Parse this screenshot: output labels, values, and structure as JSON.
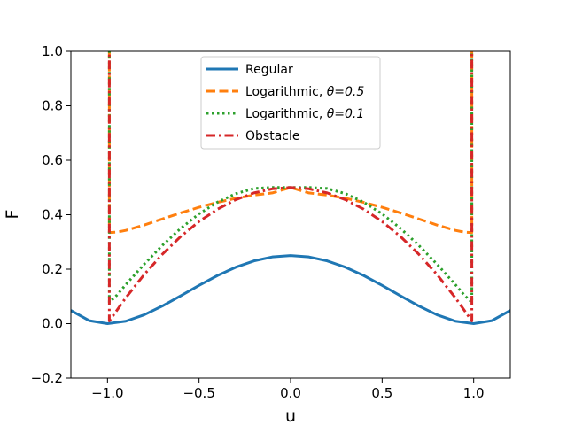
{
  "chart_data": {
    "type": "line",
    "title": "",
    "xlabel": "u",
    "ylabel": "F",
    "xlim": [
      -1.2,
      1.2
    ],
    "ylim": [
      -0.2,
      1.0
    ],
    "grid": false,
    "legend_position": "top-center",
    "x_ticks": [
      {
        "value": -1.0,
        "label": "−1.0"
      },
      {
        "value": -0.5,
        "label": "−0.5"
      },
      {
        "value": 0.0,
        "label": "0.0"
      },
      {
        "value": 0.5,
        "label": "0.5"
      },
      {
        "value": 1.0,
        "label": "1.0"
      }
    ],
    "y_ticks": [
      {
        "value": -0.2,
        "label": "−0.2"
      },
      {
        "value": 0.0,
        "label": "0.0"
      },
      {
        "value": 0.2,
        "label": "0.2"
      },
      {
        "value": 0.4,
        "label": "0.4"
      },
      {
        "value": 0.6,
        "label": "0.6"
      },
      {
        "value": 0.8,
        "label": "0.8"
      },
      {
        "value": 1.0,
        "label": "1.0"
      }
    ],
    "series": [
      {
        "name": "Regular",
        "label_prefix": "Regular",
        "label_theta": "",
        "color": "#1f77b4",
        "style": "solid",
        "x": [
          -1.2,
          -1.1,
          -1.0,
          -0.9,
          -0.8,
          -0.7,
          -0.6,
          -0.5,
          -0.4,
          -0.3,
          -0.2,
          -0.1,
          0.0,
          0.1,
          0.2,
          0.3,
          0.4,
          0.5,
          0.6,
          0.7,
          0.8,
          0.9,
          1.0,
          1.1,
          1.2
        ],
        "y": [
          0.0484,
          0.011,
          0.0,
          0.009,
          0.0324,
          0.065,
          0.1024,
          0.1406,
          0.1764,
          0.207,
          0.2304,
          0.245,
          0.25,
          0.245,
          0.2304,
          0.207,
          0.1764,
          0.1406,
          0.1024,
          0.065,
          0.0324,
          0.009,
          0.0,
          0.011,
          0.0484
        ]
      },
      {
        "name": "Logarithmic, θ=0.5",
        "label_prefix": "Logarithmic, ",
        "label_theta": "θ=0.5",
        "color": "#ff7f0e",
        "style": "dashed",
        "x": [
          -0.99,
          -0.95,
          -0.9,
          -0.8,
          -0.7,
          -0.6,
          -0.5,
          -0.4,
          -0.3,
          -0.2,
          -0.1,
          0.0,
          0.1,
          0.2,
          0.3,
          0.4,
          0.5,
          0.6,
          0.7,
          0.8,
          0.9,
          0.95,
          0.99
        ],
        "y": [
          0.3347,
          0.3358,
          0.3425,
          0.3621,
          0.3846,
          0.4068,
          0.4273,
          0.4453,
          0.4603,
          0.472,
          0.48,
          0.5,
          0.48,
          0.472,
          0.4603,
          0.4453,
          0.4273,
          0.4068,
          0.3846,
          0.3621,
          0.3425,
          0.3358,
          0.3347
        ],
        "vertical_edges": true
      },
      {
        "name": "Logarithmic, θ=0.1",
        "label_prefix": "Logarithmic, ",
        "label_theta": "θ=0.1",
        "color": "#2ca02c",
        "style": "dotted",
        "x": [
          -0.99,
          -0.95,
          -0.9,
          -0.8,
          -0.7,
          -0.6,
          -0.5,
          -0.4,
          -0.3,
          -0.2,
          -0.1,
          0.0,
          0.1,
          0.2,
          0.3,
          0.4,
          0.5,
          0.6,
          0.7,
          0.8,
          0.9,
          0.95,
          0.99
        ],
        "y": [
          0.0782,
          0.1037,
          0.1432,
          0.2181,
          0.2876,
          0.35,
          0.4032,
          0.4459,
          0.4771,
          0.4962,
          0.5,
          0.5,
          0.5,
          0.4962,
          0.4771,
          0.4459,
          0.4032,
          0.35,
          0.2876,
          0.2181,
          0.1432,
          0.1037,
          0.0782
        ],
        "vertical_edges": true
      },
      {
        "name": "Obstacle",
        "label_prefix": "Obstacle",
        "label_theta": "",
        "color": "#d62728",
        "style": "dashdot",
        "x": [
          -0.99,
          -0.9,
          -0.8,
          -0.7,
          -0.6,
          -0.5,
          -0.4,
          -0.3,
          -0.2,
          -0.1,
          0.0,
          0.1,
          0.2,
          0.3,
          0.4,
          0.5,
          0.6,
          0.7,
          0.8,
          0.9,
          0.99
        ],
        "y": [
          0.01,
          0.095,
          0.18,
          0.255,
          0.32,
          0.375,
          0.42,
          0.455,
          0.48,
          0.495,
          0.5,
          0.495,
          0.48,
          0.455,
          0.42,
          0.375,
          0.32,
          0.255,
          0.18,
          0.095,
          0.01
        ],
        "vertical_edges": true
      }
    ]
  }
}
